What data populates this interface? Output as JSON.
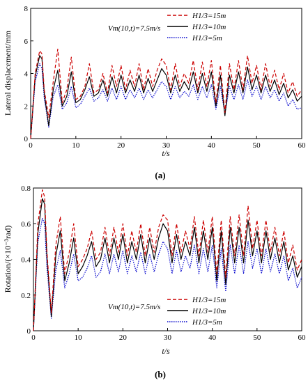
{
  "figure": {
    "caption_a": "(a)",
    "caption_b": "(b)"
  },
  "chart_data": [
    {
      "type": "line",
      "panel": "a",
      "xlabel": "t/s",
      "ylabel": "Lateral displacement/mm",
      "xlim": [
        0,
        60
      ],
      "ylim": [
        0,
        8
      ],
      "xticks": [
        "0",
        "10",
        "20",
        "30",
        "40",
        "50",
        "60"
      ],
      "yticks": [
        "0",
        "2",
        "4",
        "6",
        "8"
      ],
      "annotation": "Vm(10,t)=7.5m/s",
      "legend_position": "top-right",
      "series": [
        {
          "name": "H1/3=15m",
          "color": "#cc0000",
          "style": "dashed",
          "x": [
            0,
            1,
            2,
            2.5,
            3,
            4,
            5,
            6,
            7,
            8,
            9,
            10,
            11,
            12,
            13,
            14,
            15,
            16,
            17,
            18,
            19,
            20,
            21,
            22,
            23,
            24,
            25,
            26,
            27,
            28,
            29,
            30,
            31,
            32,
            33,
            34,
            35,
            36,
            37,
            38,
            39,
            40,
            41,
            42,
            43,
            44,
            45,
            46,
            47,
            48,
            49,
            50,
            51,
            52,
            53,
            54,
            55,
            56,
            57,
            58,
            59,
            60
          ],
          "y": [
            0,
            4.0,
            5.4,
            5.2,
            3.0,
            1.3,
            3.5,
            5.5,
            2.2,
            3.0,
            5.0,
            2.4,
            2.6,
            3.2,
            4.6,
            2.8,
            3.0,
            4.0,
            2.8,
            4.5,
            3.2,
            4.5,
            3.0,
            4.2,
            3.2,
            4.6,
            3.0,
            4.3,
            3.2,
            4.2,
            4.9,
            4.5,
            3.0,
            4.6,
            3.2,
            4.0,
            3.4,
            4.8,
            3.0,
            4.7,
            3.2,
            4.8,
            2.2,
            4.5,
            1.6,
            4.6,
            3.0,
            4.8,
            3.0,
            5.1,
            3.4,
            4.5,
            3.0,
            4.6,
            3.2,
            4.2,
            3.0,
            4.0,
            2.8,
            3.5,
            2.6,
            3.0
          ]
        },
        {
          "name": "H1/3=10m",
          "color": "#000000",
          "style": "solid",
          "x": [
            0,
            1,
            2,
            2.5,
            3,
            4,
            5,
            6,
            7,
            8,
            9,
            10,
            11,
            12,
            13,
            14,
            15,
            16,
            17,
            18,
            19,
            20,
            21,
            22,
            23,
            24,
            25,
            26,
            27,
            28,
            29,
            30,
            31,
            32,
            33,
            34,
            35,
            36,
            37,
            38,
            39,
            40,
            41,
            42,
            43,
            44,
            45,
            46,
            47,
            48,
            49,
            50,
            51,
            52,
            53,
            54,
            55,
            56,
            57,
            58,
            59,
            60
          ],
          "y": [
            0,
            3.8,
            5.1,
            4.9,
            2.8,
            0.8,
            3.0,
            4.2,
            2.0,
            2.6,
            4.1,
            2.2,
            2.4,
            3.0,
            3.8,
            2.6,
            2.8,
            3.6,
            2.6,
            3.8,
            2.8,
            3.9,
            2.8,
            3.6,
            2.9,
            3.9,
            2.8,
            3.7,
            2.9,
            3.6,
            4.3,
            3.9,
            2.8,
            3.9,
            2.9,
            3.5,
            3.0,
            4.1,
            2.8,
            4.0,
            2.9,
            4.1,
            2.0,
            3.9,
            1.4,
            3.9,
            2.8,
            4.1,
            2.8,
            4.4,
            3.0,
            3.9,
            2.8,
            3.9,
            2.9,
            3.6,
            2.7,
            3.4,
            2.5,
            3.0,
            2.3,
            2.6
          ]
        },
        {
          "name": "H1/3=5m",
          "color": "#0000cc",
          "style": "dotted",
          "x": [
            0,
            1,
            2,
            2.5,
            3,
            4,
            5,
            6,
            7,
            8,
            9,
            10,
            11,
            12,
            13,
            14,
            15,
            16,
            17,
            18,
            19,
            20,
            21,
            22,
            23,
            24,
            25,
            26,
            27,
            28,
            29,
            30,
            31,
            32,
            33,
            34,
            35,
            36,
            37,
            38,
            39,
            40,
            41,
            42,
            43,
            44,
            45,
            46,
            47,
            48,
            49,
            50,
            51,
            52,
            53,
            54,
            55,
            56,
            57,
            58,
            59,
            60
          ],
          "y": [
            0,
            3.5,
            4.6,
            4.3,
            2.5,
            0.7,
            2.6,
            3.3,
            1.8,
            2.2,
            3.2,
            1.9,
            2.1,
            2.6,
            3.1,
            2.3,
            2.5,
            3.0,
            2.3,
            3.1,
            2.4,
            3.2,
            2.4,
            3.0,
            2.5,
            3.1,
            2.4,
            3.0,
            2.5,
            3.0,
            3.5,
            3.2,
            2.4,
            3.2,
            2.5,
            2.9,
            2.6,
            3.3,
            2.4,
            3.2,
            2.5,
            3.3,
            1.8,
            3.2,
            1.5,
            3.2,
            2.4,
            3.3,
            2.4,
            3.6,
            2.6,
            3.2,
            2.4,
            3.2,
            2.5,
            3.0,
            2.3,
            2.8,
            2.0,
            2.4,
            1.8,
            1.9
          ]
        }
      ]
    },
    {
      "type": "line",
      "panel": "b",
      "xlabel": "t/s",
      "ylabel": "Rotation/(×10⁻³rad)",
      "xlim": [
        0,
        60
      ],
      "ylim": [
        0,
        0.8
      ],
      "xticks": [
        "0",
        "10",
        "20",
        "30",
        "40",
        "50",
        "60"
      ],
      "yticks": [
        "0",
        "0.2",
        "0.4",
        "0.6",
        "0.8"
      ],
      "annotation": "Vm(10,t)=7.5m/s",
      "legend_position": "bottom-right",
      "series": [
        {
          "name": "H1/3=15m",
          "color": "#cc0000",
          "style": "dashed",
          "x": [
            0,
            1,
            2,
            2.5,
            3,
            4,
            5,
            6,
            7,
            8,
            9,
            10,
            11,
            12,
            13,
            14,
            15,
            16,
            17,
            18,
            19,
            20,
            21,
            22,
            23,
            24,
            25,
            26,
            27,
            28,
            29,
            30,
            31,
            32,
            33,
            34,
            35,
            36,
            37,
            38,
            39,
            40,
            41,
            42,
            43,
            44,
            45,
            46,
            47,
            48,
            49,
            50,
            51,
            52,
            53,
            54,
            55,
            56,
            57,
            58,
            59,
            60
          ],
          "y": [
            0,
            0.6,
            0.79,
            0.75,
            0.45,
            0.1,
            0.48,
            0.64,
            0.32,
            0.44,
            0.6,
            0.36,
            0.4,
            0.46,
            0.56,
            0.4,
            0.44,
            0.58,
            0.42,
            0.58,
            0.44,
            0.6,
            0.42,
            0.56,
            0.44,
            0.6,
            0.42,
            0.58,
            0.44,
            0.58,
            0.65,
            0.62,
            0.42,
            0.6,
            0.44,
            0.56,
            0.46,
            0.64,
            0.42,
            0.62,
            0.44,
            0.64,
            0.32,
            0.62,
            0.3,
            0.64,
            0.42,
            0.65,
            0.42,
            0.7,
            0.46,
            0.62,
            0.42,
            0.62,
            0.44,
            0.58,
            0.42,
            0.56,
            0.38,
            0.48,
            0.34,
            0.4
          ]
        },
        {
          "name": "H1/3=10m",
          "color": "#000000",
          "style": "solid",
          "x": [
            0,
            1,
            2,
            2.5,
            3,
            4,
            5,
            6,
            7,
            8,
            9,
            10,
            11,
            12,
            13,
            14,
            15,
            16,
            17,
            18,
            19,
            20,
            21,
            22,
            23,
            24,
            25,
            26,
            27,
            28,
            29,
            30,
            31,
            32,
            33,
            34,
            35,
            36,
            37,
            38,
            39,
            40,
            41,
            42,
            43,
            44,
            45,
            46,
            47,
            48,
            49,
            50,
            51,
            52,
            53,
            54,
            55,
            56,
            57,
            58,
            59,
            60
          ],
          "y": [
            0,
            0.55,
            0.74,
            0.71,
            0.42,
            0.08,
            0.42,
            0.56,
            0.28,
            0.38,
            0.52,
            0.32,
            0.36,
            0.42,
            0.5,
            0.36,
            0.4,
            0.52,
            0.38,
            0.52,
            0.4,
            0.54,
            0.38,
            0.5,
            0.4,
            0.54,
            0.38,
            0.52,
            0.4,
            0.52,
            0.6,
            0.56,
            0.38,
            0.54,
            0.4,
            0.5,
            0.42,
            0.58,
            0.38,
            0.56,
            0.4,
            0.58,
            0.28,
            0.56,
            0.26,
            0.58,
            0.38,
            0.58,
            0.38,
            0.62,
            0.42,
            0.56,
            0.38,
            0.56,
            0.4,
            0.52,
            0.38,
            0.5,
            0.34,
            0.42,
            0.3,
            0.36
          ]
        },
        {
          "name": "H1/3=5m",
          "color": "#0000cc",
          "style": "dotted",
          "x": [
            0,
            1,
            2,
            2.5,
            3,
            4,
            5,
            6,
            7,
            8,
            9,
            10,
            11,
            12,
            13,
            14,
            15,
            16,
            17,
            18,
            19,
            20,
            21,
            22,
            23,
            24,
            25,
            26,
            27,
            28,
            29,
            30,
            31,
            32,
            33,
            34,
            35,
            36,
            37,
            38,
            39,
            40,
            41,
            42,
            43,
            44,
            45,
            46,
            47,
            48,
            49,
            50,
            51,
            52,
            53,
            54,
            55,
            56,
            57,
            58,
            59,
            60
          ],
          "y": [
            0,
            0.5,
            0.63,
            0.6,
            0.36,
            0.07,
            0.34,
            0.45,
            0.24,
            0.32,
            0.43,
            0.28,
            0.3,
            0.35,
            0.42,
            0.3,
            0.33,
            0.43,
            0.32,
            0.43,
            0.33,
            0.45,
            0.32,
            0.42,
            0.33,
            0.44,
            0.32,
            0.43,
            0.33,
            0.43,
            0.5,
            0.46,
            0.32,
            0.45,
            0.33,
            0.42,
            0.35,
            0.48,
            0.32,
            0.46,
            0.33,
            0.48,
            0.24,
            0.46,
            0.22,
            0.48,
            0.32,
            0.48,
            0.32,
            0.5,
            0.35,
            0.46,
            0.32,
            0.46,
            0.33,
            0.43,
            0.32,
            0.42,
            0.28,
            0.35,
            0.24,
            0.3
          ]
        }
      ]
    }
  ]
}
